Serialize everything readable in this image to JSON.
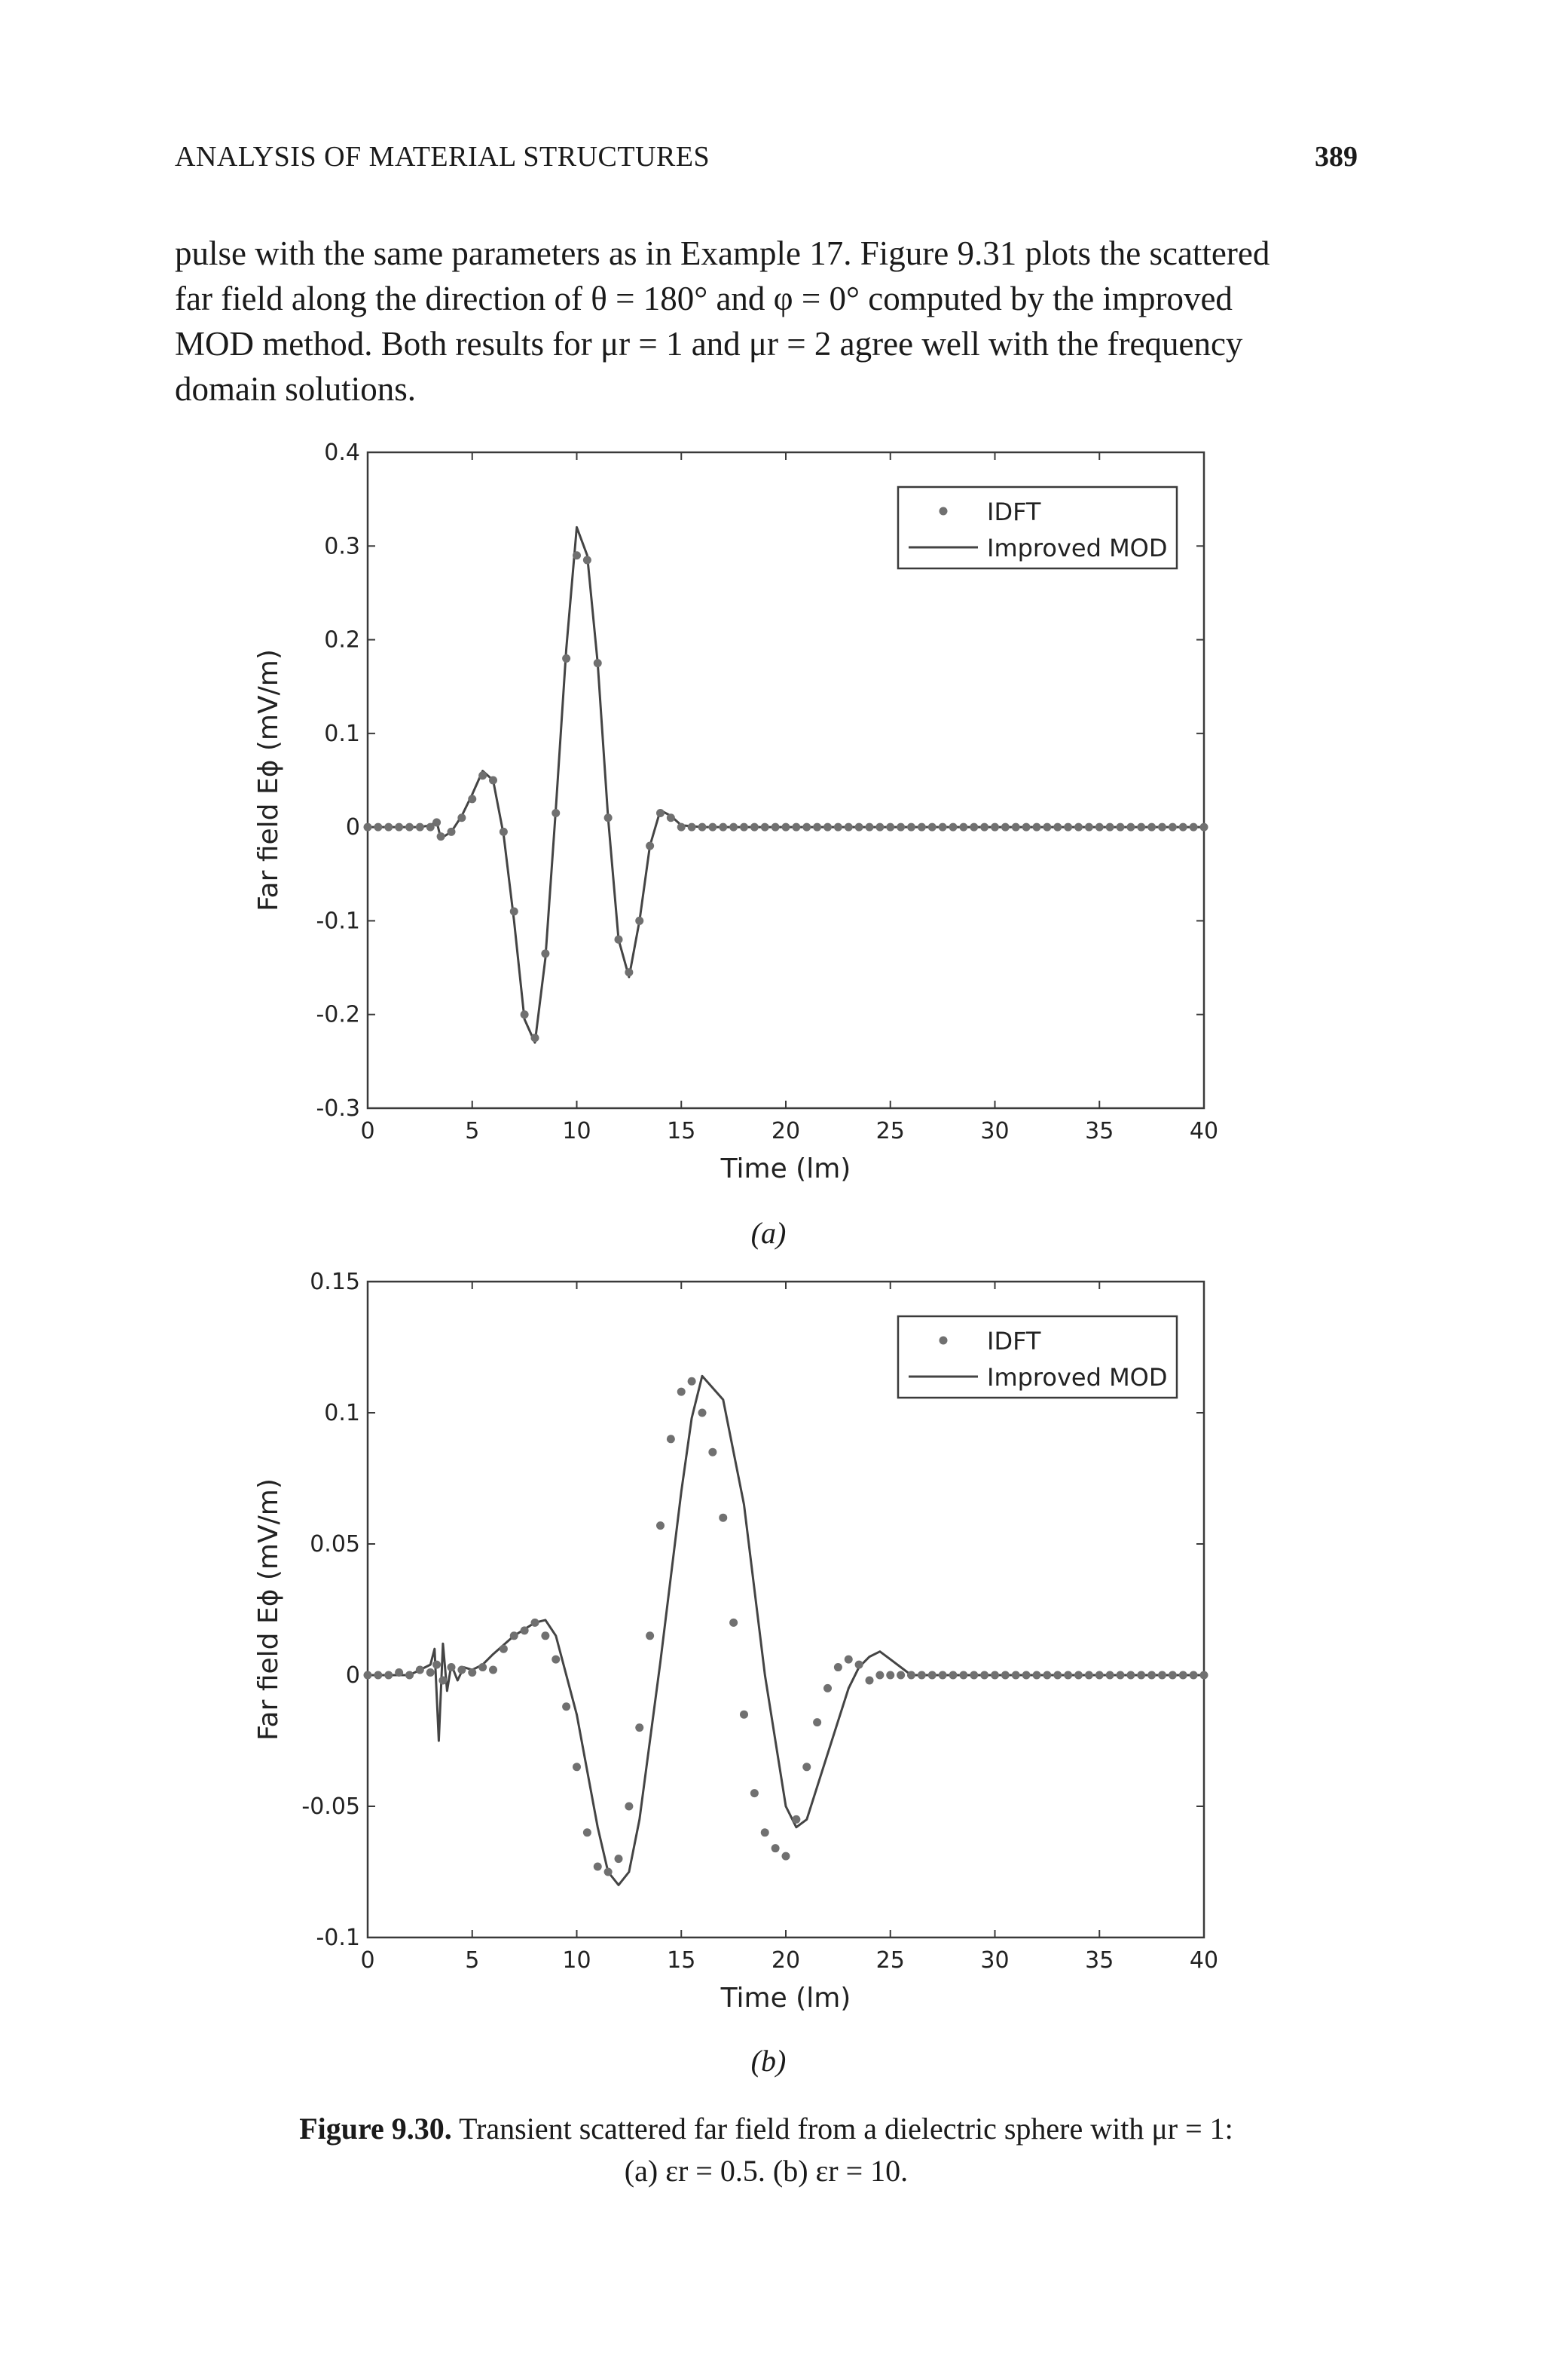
{
  "header": {
    "running_head": "ANALYSIS OF MATERIAL STRUCTURES",
    "page_number": "389"
  },
  "body": {
    "lines": [
      "pulse with the same parameters as in Example 17. Figure 9.31 plots the scattered",
      "far field along the direction of θ = 180° and φ = 0° computed by the improved",
      "MOD method. Both results for μr = 1 and μr = 2 agree well with the frequency",
      "domain solutions."
    ]
  },
  "chart_data": [
    {
      "type": "line",
      "panel_label": "(a)",
      "xlabel": "Time (lm)",
      "ylabel": "Far field Eϕ (mV/m)",
      "xlim": [
        0,
        40
      ],
      "ylim": [
        -0.3,
        0.4
      ],
      "xticks": [
        "0",
        "5",
        "10",
        "15",
        "20",
        "25",
        "30",
        "35",
        "40"
      ],
      "yticks": [
        "-0.3",
        "-0.2",
        "-0.1",
        "0",
        "0.1",
        "0.2",
        "0.3",
        "0.4"
      ],
      "legend": {
        "position": "top-right",
        "entries": [
          "IDFT",
          "Improved MOD"
        ]
      },
      "series": [
        {
          "name": "IDFT",
          "style": "markers",
          "x": [
            0,
            0.5,
            1,
            1.5,
            2,
            2.5,
            3,
            3.3,
            3.5,
            4,
            4.5,
            5,
            5.5,
            6,
            6.5,
            7,
            7.5,
            8,
            8.5,
            9,
            9.5,
            10,
            10.5,
            11,
            11.5,
            12,
            12.5,
            13,
            13.5,
            14,
            14.5,
            15,
            15.5,
            16,
            16.5,
            17,
            17.5,
            18,
            18.5,
            19,
            19.5,
            20,
            20.5,
            21,
            21.5,
            22,
            22.5,
            23,
            23.5,
            24,
            24.5,
            25,
            25.5,
            26,
            26.5,
            27,
            27.5,
            28,
            28.5,
            29,
            29.5,
            30,
            30.5,
            31,
            31.5,
            32,
            32.5,
            33,
            33.5,
            34,
            34.5,
            35,
            35.5,
            36,
            36.5,
            37,
            37.5,
            38,
            38.5,
            39,
            39.5,
            40
          ],
          "y": [
            0,
            0,
            0,
            0,
            0,
            0,
            0,
            0.005,
            -0.01,
            -0.005,
            0.01,
            0.03,
            0.055,
            0.05,
            -0.005,
            -0.09,
            -0.2,
            -0.225,
            -0.135,
            0.015,
            0.18,
            0.29,
            0.285,
            0.175,
            0.01,
            -0.12,
            -0.155,
            -0.1,
            -0.02,
            0.015,
            0.01,
            0,
            0,
            0,
            0,
            0,
            0,
            0,
            0,
            0,
            0,
            0,
            0,
            0,
            0,
            0,
            0,
            0,
            0,
            0,
            0,
            0,
            0,
            0,
            0,
            0,
            0,
            0,
            0,
            0,
            0,
            0,
            0,
            0,
            0,
            0,
            0,
            0,
            0,
            0,
            0,
            0,
            0,
            0,
            0,
            0,
            0,
            0,
            0,
            0,
            0,
            0
          ]
        },
        {
          "name": "Improved MOD",
          "style": "line",
          "x": [
            0,
            1,
            2,
            2.5,
            3,
            3.3,
            3.5,
            4,
            4.5,
            5,
            5.5,
            6,
            6.5,
            7,
            7.5,
            8,
            8.5,
            9,
            9.5,
            10,
            10.5,
            11,
            11.5,
            12,
            12.5,
            13,
            13.5,
            14,
            14.5,
            15,
            16,
            18,
            20,
            25,
            30,
            35,
            40
          ],
          "y": [
            0,
            0,
            0,
            0,
            0.002,
            0.006,
            -0.012,
            -0.005,
            0.012,
            0.035,
            0.06,
            0.05,
            -0.008,
            -0.1,
            -0.205,
            -0.23,
            -0.14,
            0.02,
            0.19,
            0.32,
            0.29,
            0.175,
            0.01,
            -0.12,
            -0.16,
            -0.1,
            -0.02,
            0.018,
            0.012,
            0.002,
            0,
            0,
            0,
            0,
            0,
            0,
            0
          ]
        }
      ]
    },
    {
      "type": "line",
      "panel_label": "(b)",
      "xlabel": "Time (lm)",
      "ylabel": "Far field Eϕ (mV/m)",
      "xlim": [
        0,
        40
      ],
      "ylim": [
        -0.1,
        0.15
      ],
      "xticks": [
        "0",
        "5",
        "10",
        "15",
        "20",
        "25",
        "30",
        "35",
        "40"
      ],
      "yticks": [
        "-0.1",
        "-0.05",
        "0",
        "0.05",
        "0.1",
        "0.15"
      ],
      "legend": {
        "position": "top-right",
        "entries": [
          "IDFT",
          "Improved MOD"
        ]
      },
      "series": [
        {
          "name": "IDFT",
          "style": "markers",
          "x": [
            0,
            0.5,
            1,
            1.5,
            2,
            2.5,
            3,
            3.3,
            3.6,
            4,
            4.5,
            5,
            5.5,
            6,
            6.5,
            7,
            7.5,
            8,
            8.5,
            9,
            9.5,
            10,
            10.5,
            11,
            11.5,
            12,
            12.5,
            13,
            13.5,
            14,
            14.5,
            15,
            15.5,
            16,
            16.5,
            17,
            17.5,
            18,
            18.5,
            19,
            19.5,
            20,
            20.5,
            21,
            21.5,
            22,
            22.5,
            23,
            23.5,
            24,
            24.5,
            25,
            25.5,
            26,
            26.5,
            27,
            27.5,
            28,
            28.5,
            29,
            29.5,
            30,
            30.5,
            31,
            31.5,
            32,
            32.5,
            33,
            33.5,
            34,
            34.5,
            35,
            35.5,
            36,
            36.5,
            37,
            37.5,
            38,
            38.5,
            39,
            39.5,
            40
          ],
          "y": [
            0,
            0,
            0,
            0.001,
            0,
            0.002,
            0.001,
            0.004,
            -0.002,
            0.003,
            0.002,
            0.001,
            0.003,
            0.002,
            0.01,
            0.015,
            0.017,
            0.02,
            0.015,
            0.006,
            -0.012,
            -0.035,
            -0.06,
            -0.073,
            -0.075,
            -0.07,
            -0.05,
            -0.02,
            0.015,
            0.057,
            0.09,
            0.108,
            0.112,
            0.1,
            0.085,
            0.06,
            0.02,
            -0.015,
            -0.045,
            -0.06,
            -0.066,
            -0.069,
            -0.055,
            -0.035,
            -0.018,
            -0.005,
            0.003,
            0.006,
            0.004,
            -0.002,
            0,
            0,
            0,
            0,
            0,
            0,
            0,
            0,
            0,
            0,
            0,
            0,
            0,
            0,
            0,
            0,
            0,
            0,
            0,
            0,
            0,
            0,
            0,
            0,
            0,
            0,
            0,
            0,
            0,
            0,
            0,
            0
          ]
        },
        {
          "name": "Improved MOD",
          "style": "line",
          "x": [
            0,
            1,
            2,
            2.5,
            3,
            3.2,
            3.4,
            3.6,
            3.8,
            4,
            4.3,
            4.6,
            5,
            5.5,
            6,
            7,
            8,
            8.5,
            9,
            10,
            11,
            11.5,
            12,
            12.5,
            13,
            14,
            15,
            15.5,
            16,
            17,
            18,
            19,
            20,
            20.5,
            21,
            22,
            23,
            23.5,
            24,
            24.5,
            25,
            26,
            28,
            30,
            35,
            40
          ],
          "y": [
            0,
            0,
            0,
            0.002,
            0.004,
            0.01,
            -0.025,
            0.012,
            -0.006,
            0.004,
            -0.002,
            0.003,
            0.002,
            0.004,
            0.008,
            0.015,
            0.02,
            0.021,
            0.015,
            -0.015,
            -0.058,
            -0.075,
            -0.08,
            -0.075,
            -0.055,
            0.005,
            0.07,
            0.098,
            0.114,
            0.105,
            0.065,
            0,
            -0.05,
            -0.058,
            -0.055,
            -0.03,
            -0.005,
            0.003,
            0.007,
            0.009,
            0.006,
            0,
            0,
            0,
            0,
            0
          ]
        }
      ]
    }
  ],
  "caption": {
    "label": "Figure 9.30.",
    "line1": "Transient scattered far field from a dielectric sphere with μr = 1:",
    "line2": "(a) εr = 0.5. (b) εr = 10."
  }
}
